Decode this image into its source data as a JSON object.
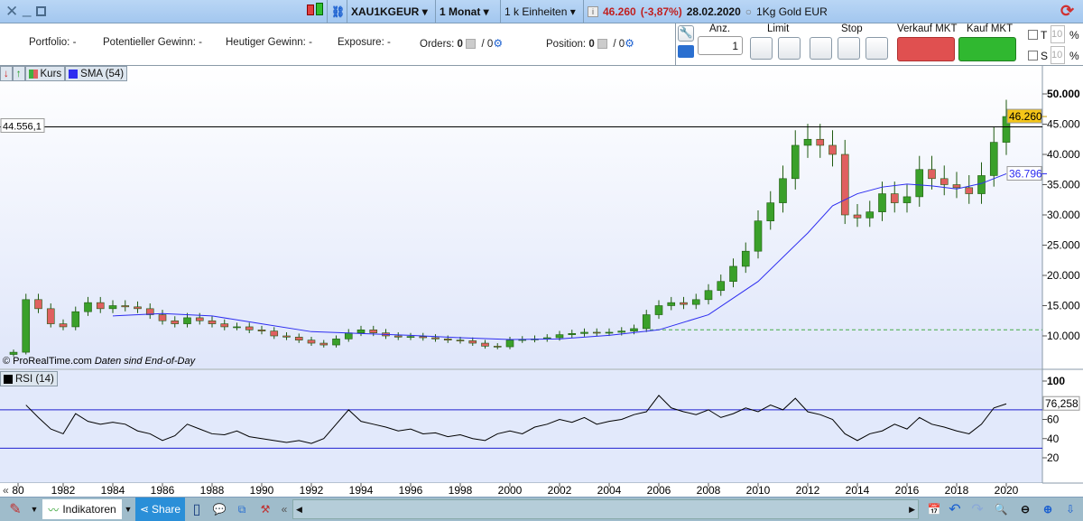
{
  "window": {
    "controls": [
      "close",
      "minimize",
      "maximize"
    ]
  },
  "titlebar": {
    "symbol": "XAU1KGEUR",
    "timeframe": "1 Monat",
    "units": "1 k Einheiten",
    "price": "46.260",
    "change": "(-3,87%)",
    "date": "28.02.2020",
    "instrument": "1Kg Gold EUR"
  },
  "orderbar": {
    "portfolio_label": "Portfolio:",
    "portfolio_value": "-",
    "pot_gain_label": "Potentieller Gewinn:",
    "pot_gain_value": "-",
    "today_gain_label": "Heutiger Gewinn:",
    "today_gain_value": "-",
    "exposure_label": "Exposure:",
    "exposure_value": "-",
    "orders_label": "Orders:",
    "orders_value": "0",
    "orders_total": "/ 0",
    "position_label": "Position:",
    "position_value": "0",
    "position_total": "/ 0",
    "qty_label": "Anz.",
    "qty_value": "1",
    "limit_label": "Limit",
    "stop_label": "Stop",
    "sell_label": "Verkauf MKT",
    "buy_label": "Kauf MKT",
    "t_label": "T",
    "t_value": "10",
    "s_label": "S",
    "s_value": "10",
    "pct": "%"
  },
  "legend": {
    "price": "Kurs",
    "sma": "SMA (54)",
    "rsi": "RSI (14)"
  },
  "colors": {
    "sma": "#2d2df0",
    "bull": "#2e8b1e",
    "bear": "#d84040",
    "rsi": "#000000",
    "level": "#2020d0"
  },
  "chart_data": [
    {
      "type": "candlestick",
      "x": [
        1980,
        1980.5,
        1981,
        1981.5,
        1982,
        1982.5,
        1983,
        1983.5,
        1984,
        1984.5,
        1985,
        1985.5,
        1986,
        1986.5,
        1987,
        1987.5,
        1988,
        1988.5,
        1989,
        1989.5,
        1990,
        1990.5,
        1991,
        1991.5,
        1992,
        1992.5,
        1993,
        1993.5,
        1994,
        1994.5,
        1995,
        1995.5,
        1996,
        1996.5,
        1997,
        1997.5,
        1998,
        1998.5,
        1999,
        1999.5,
        2000,
        2000.5,
        2001,
        2001.5,
        2002,
        2002.5,
        2003,
        2003.5,
        2004,
        2004.5,
        2005,
        2005.5,
        2006,
        2006.5,
        2007,
        2007.5,
        2008,
        2008.5,
        2009,
        2009.5,
        2010,
        2010.5,
        2011,
        2011.5,
        2012,
        2012.5,
        2013,
        2013.5,
        2014,
        2014.5,
        2015,
        2015.5,
        2016,
        2016.5,
        2017,
        2017.5,
        2018,
        2018.5,
        2019,
        2019.5,
        2020
      ],
      "close": [
        7300,
        16000,
        14500,
        12000,
        11500,
        14000,
        15500,
        14500,
        15000,
        14800,
        14500,
        13500,
        12500,
        12000,
        13000,
        12500,
        12000,
        11500,
        11500,
        11000,
        10800,
        10000,
        9800,
        9300,
        8800,
        8500,
        9500,
        10500,
        11000,
        10500,
        10000,
        9800,
        9900,
        9700,
        9500,
        9300,
        9200,
        8800,
        8300,
        8200,
        9300,
        9400,
        9500,
        9700,
        10200,
        10400,
        10600,
        10500,
        10600,
        10800,
        11200,
        13500,
        15000,
        15500,
        15200,
        16000,
        17500,
        19000,
        21500,
        24000,
        29000,
        32000,
        36000,
        41500,
        42500,
        41500,
        40000,
        30000,
        29500,
        30500,
        33500,
        32000,
        33000,
        37500,
        36000,
        35000,
        34500,
        33500,
        36500,
        42000,
        46260
      ],
      "sma_x": [
        1984,
        1986,
        1988,
        1990,
        1992,
        1994,
        1996,
        1998,
        2000,
        2002,
        2004,
        2006,
        2008,
        2010,
        2012,
        2013,
        2014,
        2015,
        2016,
        2017,
        2018,
        2019,
        2020
      ],
      "sma": [
        13300,
        13700,
        13300,
        12000,
        10700,
        10400,
        10100,
        9700,
        9400,
        9500,
        10100,
        11000,
        13500,
        19000,
        27000,
        31500,
        33500,
        34600,
        35100,
        34800,
        34300,
        35200,
        36796
      ],
      "last_price": "46.260",
      "sma_last": "36.796",
      "hline": "44.556,1",
      "hline_value": 44556.1,
      "dashed_level": 11000,
      "yticks": [
        "10.000",
        "15.000",
        "20.000",
        "25.000",
        "30.000",
        "35.000",
        "40.000",
        "45.000",
        "50.000"
      ],
      "ylim": [
        5000,
        52000
      ],
      "watermark": "© ProRealTime.com",
      "note": "Daten sind End-of-Day"
    },
    {
      "type": "line",
      "x": [
        1980.5,
        1981,
        1981.5,
        1982,
        1982.5,
        1983,
        1983.5,
        1984,
        1984.5,
        1985,
        1985.5,
        1986,
        1986.5,
        1987,
        1987.5,
        1988,
        1988.5,
        1989,
        1989.5,
        1990,
        1990.5,
        1991,
        1991.5,
        1992,
        1992.5,
        1993,
        1993.5,
        1994,
        1994.5,
        1995,
        1995.5,
        1996,
        1996.5,
        1997,
        1997.5,
        1998,
        1998.5,
        1999,
        1999.5,
        2000,
        2000.5,
        2001,
        2001.5,
        2002,
        2002.5,
        2003,
        2003.5,
        2004,
        2004.5,
        2005,
        2005.5,
        2006,
        2006.5,
        2007,
        2007.5,
        2008,
        2008.5,
        2009,
        2009.5,
        2010,
        2010.5,
        2011,
        2011.5,
        2012,
        2012.5,
        2013,
        2013.5,
        2014,
        2014.5,
        2015,
        2015.5,
        2016,
        2016.5,
        2017,
        2017.5,
        2018,
        2018.5,
        2019,
        2019.5,
        2020
      ],
      "values": [
        75,
        62,
        50,
        45,
        66,
        58,
        55,
        57,
        55,
        48,
        45,
        38,
        43,
        55,
        50,
        45,
        44,
        48,
        42,
        40,
        38,
        36,
        38,
        35,
        40,
        55,
        70,
        58,
        55,
        52,
        48,
        50,
        45,
        46,
        42,
        44,
        40,
        38,
        45,
        48,
        45,
        52,
        55,
        60,
        57,
        62,
        55,
        58,
        60,
        65,
        68,
        85,
        72,
        68,
        65,
        70,
        62,
        66,
        72,
        68,
        75,
        70,
        82,
        68,
        65,
        60,
        45,
        38,
        45,
        48,
        55,
        50,
        62,
        55,
        52,
        48,
        45,
        55,
        72,
        76.258
      ],
      "levels": [
        70,
        30
      ],
      "last": "76,258",
      "yticks": [
        "20",
        "40",
        "60",
        "100"
      ],
      "ylim": [
        10,
        100
      ]
    },
    {
      "xticks": [
        "80",
        "1982",
        "1984",
        "1986",
        "1988",
        "1990",
        "1992",
        "1994",
        "1996",
        "1998",
        "2000",
        "2002",
        "2004",
        "2006",
        "2008",
        "2010",
        "2012",
        "2014",
        "2016",
        "2018",
        "2020"
      ]
    }
  ],
  "bottombar": {
    "indicators_label": "Indikatoren",
    "share_label": "Share"
  }
}
